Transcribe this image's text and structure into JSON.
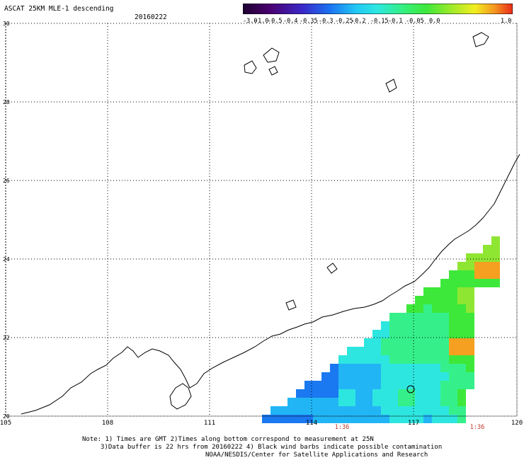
{
  "header": {
    "title": "ASCAT 25KM MLE-1 descending",
    "date": "20160222"
  },
  "colorbar": {
    "labels": [
      "-3.0",
      "-1.0",
      "-0.5",
      "-0.4",
      "-0.35",
      "-0.3",
      "-0.25",
      "-0.2",
      "-0.15",
      "-0.1",
      "-0.05",
      "0.0",
      "1.0"
    ],
    "colors": [
      "#2a0040",
      "#4b006e",
      "#5a20b0",
      "#2f45d8",
      "#1a78f0",
      "#22b5f5",
      "#2ee6e0",
      "#35f08a",
      "#3ee83a",
      "#8fe632",
      "#e8f020",
      "#f5a020",
      "#e83020"
    ]
  },
  "map": {
    "lat_labels": [
      "30",
      "28",
      "26",
      "24",
      "22",
      "20"
    ],
    "lon_labels": [
      "105",
      "108",
      "111",
      "114",
      "117",
      "120"
    ],
    "pass_times": [
      "1:36",
      "1:36"
    ],
    "field_colors": [
      "#22b5f5",
      "#2ee6e0",
      "#35f08a",
      "#3ee83a",
      "#8fe632",
      "#e8f020",
      "#f5a020",
      "#1a78f0"
    ]
  },
  "footer": {
    "line1": "Note: 1) Times are GMT 2)Times along bottom correspond to measurement at 25N",
    "line2": "3)Data buffer is 22 hrs from 20160222 4) Black wind barbs indicate possible contamination",
    "line3": "NOAA/NESDIS/Center for Satellite Applications and Research"
  }
}
